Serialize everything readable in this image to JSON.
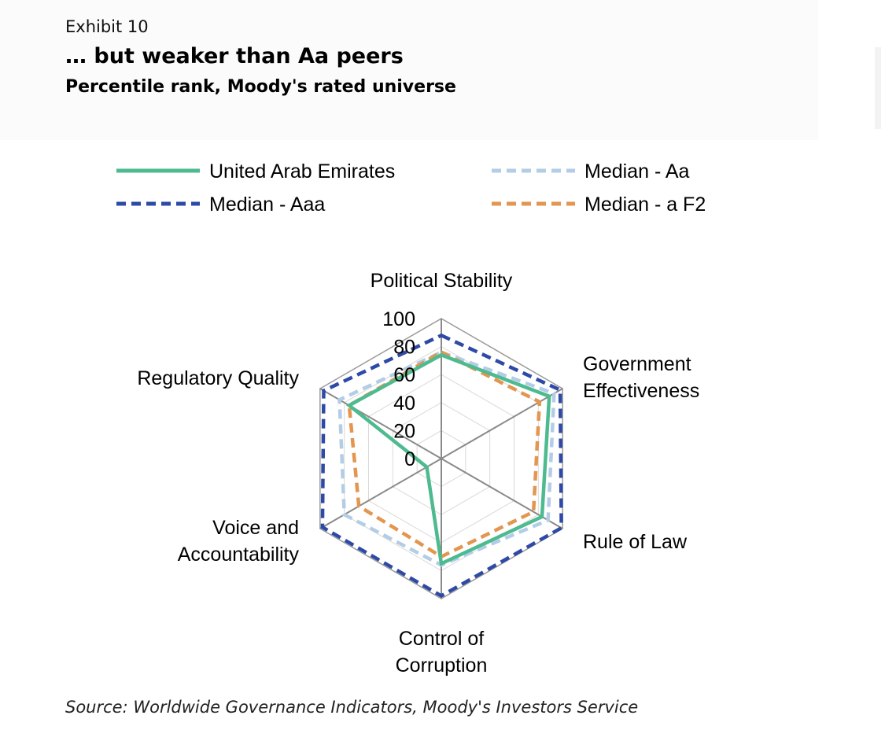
{
  "header": {
    "exhibit": "Exhibit 10",
    "title": "… but weaker than Aa peers",
    "subtitle": "Percentile rank, Moody's rated universe"
  },
  "source": "Source: Worldwide Governance Indicators, Moody's Investors Service",
  "chart_data": {
    "type": "radar",
    "axes": [
      "Political Stability",
      "Government Effectiveness",
      "Rule of Law",
      "Control of Corruption",
      "Voice and Accountability",
      "Regulatory Quality"
    ],
    "axis_label_lines": [
      [
        "Political Stability"
      ],
      [
        "Government",
        "Effectiveness"
      ],
      [
        "Rule of Law"
      ],
      [
        "Control of",
        "Corruption"
      ],
      [
        "Voice and",
        "Accountability"
      ],
      [
        "Regulatory  Quality"
      ]
    ],
    "r_ticks": [
      "0",
      "20",
      "40",
      "60",
      "80",
      "100"
    ],
    "r_range": [
      0,
      100
    ],
    "grid": true,
    "legend_position": "top",
    "series": [
      {
        "name": "United Arab Emirates",
        "values": [
          74,
          89,
          83,
          75,
          12,
          76
        ],
        "color": "#4dba8f",
        "dash": "solid"
      },
      {
        "name": "Median - Aa",
        "values": [
          76,
          93,
          88,
          76,
          80,
          84
        ],
        "color": "#b3cde6",
        "dash": "dashed"
      },
      {
        "name": "Median - Aaa",
        "values": [
          88,
          98,
          99,
          98,
          98,
          97
        ],
        "color": "#2e4aa6",
        "dash": "dashed"
      },
      {
        "name": "Median - a F2",
        "values": [
          76,
          81,
          76,
          70,
          68,
          76
        ],
        "color": "#e39650",
        "dash": "dashed"
      }
    ],
    "legend_order": [
      "United Arab Emirates",
      "Median - Aa",
      "Median - Aaa",
      "Median - a F2"
    ]
  }
}
